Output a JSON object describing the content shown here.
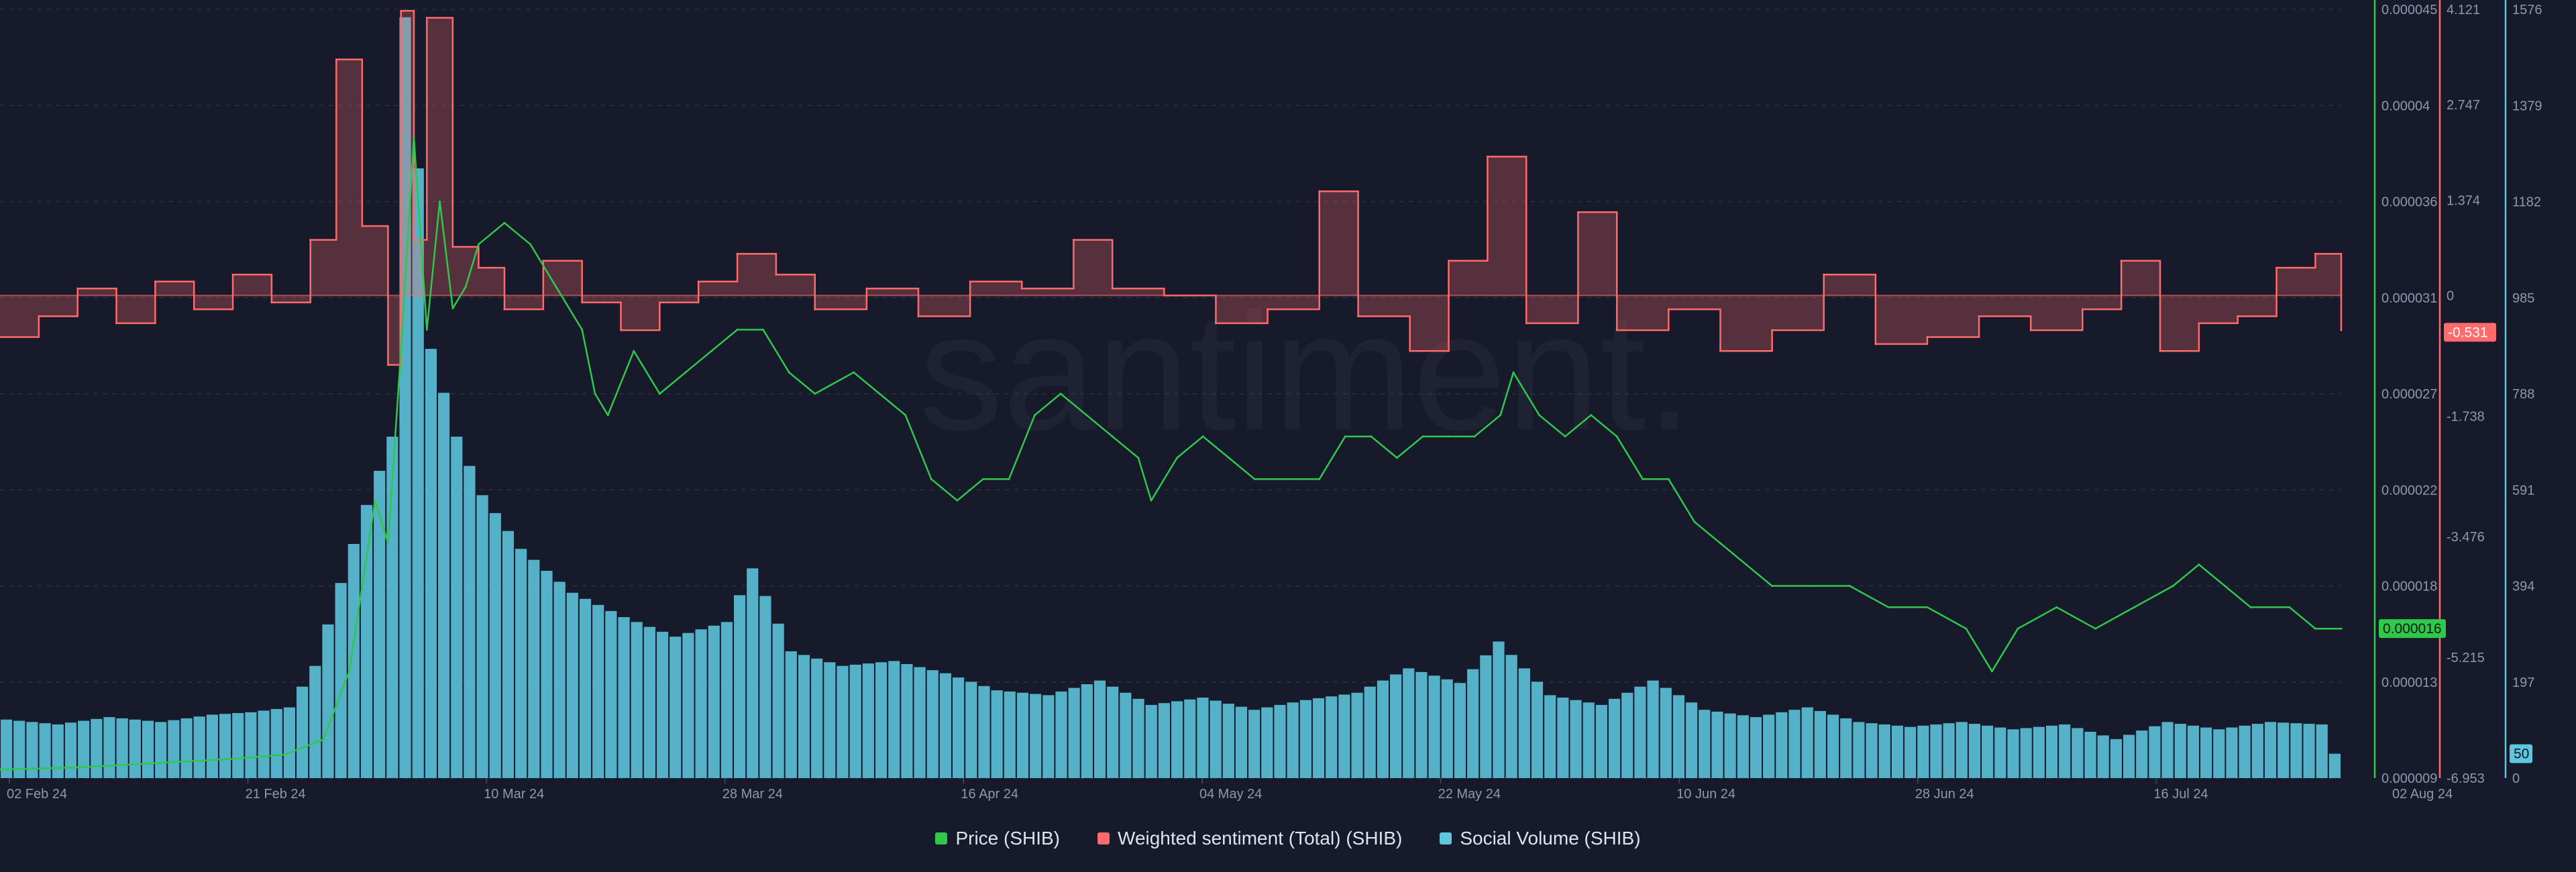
{
  "chart_data": {
    "type": "line",
    "watermark": "santiment.",
    "x_ticks": [
      "02 Feb 24",
      "21 Feb 24",
      "10 Mar 24",
      "28 Mar 24",
      "16 Apr 24",
      "04 May 24",
      "22 May 24",
      "10 Jun 24",
      "28 Jun 24",
      "16 Jul 24",
      "02 Aug 24"
    ],
    "x_range": [
      "2024-02-02",
      "2024-08-01"
    ],
    "axes": {
      "price": {
        "ticks": [
          "0.000045",
          "0.00004",
          "0.000036",
          "0.000031",
          "0.000027",
          "0.000022",
          "0.000018",
          "0.000013",
          "0.000009"
        ],
        "ylim": [
          9e-06,
          4.5e-05
        ],
        "color": "#2fc84a"
      },
      "sentiment": {
        "ticks": [
          "4.121",
          "2.747",
          "1.374",
          "0",
          "-1.738",
          "-3.476",
          "-5.215",
          "-6.953"
        ],
        "ylim": [
          -6.953,
          4.121
        ],
        "color": "#ff6b6b"
      },
      "social": {
        "ticks": [
          "1576",
          "1379",
          "1182",
          "985",
          "788",
          "591",
          "394",
          "197",
          "0"
        ],
        "ylim": [
          0,
          1576
        ],
        "color": "#5ec6dd"
      }
    },
    "current_values": {
      "price": "0.000016",
      "sentiment": "-0.531",
      "social": "50"
    },
    "series": [
      {
        "name": "Price (SHIB)",
        "axis": "price",
        "color": "#2fc84a",
        "points": [
          [
            "2024-02-02",
            9.4e-06
          ],
          [
            "2024-02-08",
            9.5e-06
          ],
          [
            "2024-02-14",
            9.7e-06
          ],
          [
            "2024-02-20",
            9.9e-06
          ],
          [
            "2024-02-24",
            1.01e-05
          ],
          [
            "2024-02-27",
            1.08e-05
          ],
          [
            "2024-02-29",
            1.4e-05
          ],
          [
            "2024-03-01",
            1.8e-05
          ],
          [
            "2024-03-02",
            2.2e-05
          ],
          [
            "2024-03-03",
            2e-05
          ],
          [
            "2024-03-04",
            2.9e-05
          ],
          [
            "2024-03-05",
            3.9e-05
          ],
          [
            "2024-03-06",
            3e-05
          ],
          [
            "2024-03-07",
            3.6e-05
          ],
          [
            "2024-03-08",
            3.1e-05
          ],
          [
            "2024-03-09",
            3.2e-05
          ],
          [
            "2024-03-10",
            3.4e-05
          ],
          [
            "2024-03-12",
            3.5e-05
          ],
          [
            "2024-03-14",
            3.4e-05
          ],
          [
            "2024-03-16",
            3.2e-05
          ],
          [
            "2024-03-18",
            3e-05
          ],
          [
            "2024-03-19",
            2.7e-05
          ],
          [
            "2024-03-20",
            2.6e-05
          ],
          [
            "2024-03-22",
            2.9e-05
          ],
          [
            "2024-03-24",
            2.7e-05
          ],
          [
            "2024-03-26",
            2.8e-05
          ],
          [
            "2024-03-28",
            2.9e-05
          ],
          [
            "2024-03-30",
            3e-05
          ],
          [
            "2024-04-01",
            3e-05
          ],
          [
            "2024-04-03",
            2.8e-05
          ],
          [
            "2024-04-05",
            2.7e-05
          ],
          [
            "2024-04-08",
            2.8e-05
          ],
          [
            "2024-04-10",
            2.7e-05
          ],
          [
            "2024-04-12",
            2.6e-05
          ],
          [
            "2024-04-14",
            2.3e-05
          ],
          [
            "2024-04-16",
            2.2e-05
          ],
          [
            "2024-04-18",
            2.3e-05
          ],
          [
            "2024-04-20",
            2.3e-05
          ],
          [
            "2024-04-22",
            2.6e-05
          ],
          [
            "2024-04-24",
            2.7e-05
          ],
          [
            "2024-04-26",
            2.6e-05
          ],
          [
            "2024-04-28",
            2.5e-05
          ],
          [
            "2024-04-30",
            2.4e-05
          ],
          [
            "2024-05-01",
            2.2e-05
          ],
          [
            "2024-05-03",
            2.4e-05
          ],
          [
            "2024-05-05",
            2.5e-05
          ],
          [
            "2024-05-07",
            2.4e-05
          ],
          [
            "2024-05-09",
            2.3e-05
          ],
          [
            "2024-05-12",
            2.3e-05
          ],
          [
            "2024-05-14",
            2.3e-05
          ],
          [
            "2024-05-16",
            2.5e-05
          ],
          [
            "2024-05-18",
            2.5e-05
          ],
          [
            "2024-05-20",
            2.4e-05
          ],
          [
            "2024-05-22",
            2.5e-05
          ],
          [
            "2024-05-24",
            2.5e-05
          ],
          [
            "2024-05-26",
            2.5e-05
          ],
          [
            "2024-05-28",
            2.6e-05
          ],
          [
            "2024-05-29",
            2.8e-05
          ],
          [
            "2024-05-31",
            2.6e-05
          ],
          [
            "2024-06-02",
            2.5e-05
          ],
          [
            "2024-06-04",
            2.6e-05
          ],
          [
            "2024-06-06",
            2.5e-05
          ],
          [
            "2024-06-08",
            2.3e-05
          ],
          [
            "2024-06-10",
            2.3e-05
          ],
          [
            "2024-06-12",
            2.1e-05
          ],
          [
            "2024-06-14",
            2e-05
          ],
          [
            "2024-06-16",
            1.9e-05
          ],
          [
            "2024-06-18",
            1.8e-05
          ],
          [
            "2024-06-21",
            1.8e-05
          ],
          [
            "2024-06-24",
            1.8e-05
          ],
          [
            "2024-06-27",
            1.7e-05
          ],
          [
            "2024-06-30",
            1.7e-05
          ],
          [
            "2024-07-03",
            1.6e-05
          ],
          [
            "2024-07-05",
            1.4e-05
          ],
          [
            "2024-07-07",
            1.6e-05
          ],
          [
            "2024-07-10",
            1.7e-05
          ],
          [
            "2024-07-13",
            1.6e-05
          ],
          [
            "2024-07-16",
            1.7e-05
          ],
          [
            "2024-07-19",
            1.8e-05
          ],
          [
            "2024-07-21",
            1.9e-05
          ],
          [
            "2024-07-23",
            1.8e-05
          ],
          [
            "2024-07-25",
            1.7e-05
          ],
          [
            "2024-07-28",
            1.7e-05
          ],
          [
            "2024-07-30",
            1.6e-05
          ],
          [
            "2024-08-01",
            1.6e-05
          ]
        ]
      },
      {
        "name": "Weighted sentiment (Total) (SHIB)",
        "axis": "sentiment",
        "color": "#ff6b6b",
        "points": [
          [
            "2024-02-02",
            -0.6
          ],
          [
            "2024-02-05",
            -0.3
          ],
          [
            "2024-02-08",
            0.1
          ],
          [
            "2024-02-11",
            -0.4
          ],
          [
            "2024-02-14",
            0.2
          ],
          [
            "2024-02-17",
            -0.2
          ],
          [
            "2024-02-20",
            0.3
          ],
          [
            "2024-02-23",
            -0.1
          ],
          [
            "2024-02-26",
            0.8
          ],
          [
            "2024-02-28",
            3.4
          ],
          [
            "2024-03-01",
            1.0
          ],
          [
            "2024-03-03",
            -1.0
          ],
          [
            "2024-03-04",
            4.1
          ],
          [
            "2024-03-05",
            0.8
          ],
          [
            "2024-03-06",
            4.0
          ],
          [
            "2024-03-08",
            0.7
          ],
          [
            "2024-03-10",
            0.4
          ],
          [
            "2024-03-12",
            -0.2
          ],
          [
            "2024-03-15",
            0.5
          ],
          [
            "2024-03-18",
            -0.1
          ],
          [
            "2024-03-21",
            -0.5
          ],
          [
            "2024-03-24",
            -0.1
          ],
          [
            "2024-03-27",
            0.2
          ],
          [
            "2024-03-30",
            0.6
          ],
          [
            "2024-04-02",
            0.3
          ],
          [
            "2024-04-05",
            -0.2
          ],
          [
            "2024-04-09",
            0.1
          ],
          [
            "2024-04-13",
            -0.3
          ],
          [
            "2024-04-17",
            0.2
          ],
          [
            "2024-04-21",
            0.1
          ],
          [
            "2024-04-25",
            0.8
          ],
          [
            "2024-04-28",
            0.1
          ],
          [
            "2024-05-02",
            0.0
          ],
          [
            "2024-05-06",
            -0.4
          ],
          [
            "2024-05-10",
            -0.2
          ],
          [
            "2024-05-14",
            1.5
          ],
          [
            "2024-05-17",
            -0.3
          ],
          [
            "2024-05-21",
            -0.8
          ],
          [
            "2024-05-24",
            0.5
          ],
          [
            "2024-05-27",
            2.0
          ],
          [
            "2024-05-30",
            -0.4
          ],
          [
            "2024-06-03",
            1.2
          ],
          [
            "2024-06-06",
            -0.5
          ],
          [
            "2024-06-10",
            -0.2
          ],
          [
            "2024-06-14",
            -0.8
          ],
          [
            "2024-06-18",
            -0.5
          ],
          [
            "2024-06-22",
            0.3
          ],
          [
            "2024-06-26",
            -0.7
          ],
          [
            "2024-06-30",
            -0.6
          ],
          [
            "2024-07-04",
            -0.3
          ],
          [
            "2024-07-08",
            -0.5
          ],
          [
            "2024-07-12",
            -0.2
          ],
          [
            "2024-07-15",
            0.5
          ],
          [
            "2024-07-18",
            -0.8
          ],
          [
            "2024-07-21",
            -0.4
          ],
          [
            "2024-07-24",
            -0.3
          ],
          [
            "2024-07-27",
            0.4
          ],
          [
            "2024-07-30",
            0.6
          ],
          [
            "2024-08-01",
            -0.5
          ]
        ]
      },
      {
        "name": "Social Volume (SHIB)",
        "axis": "social",
        "color": "#5ec6dd",
        "points": [
          [
            "2024-02-02",
            120
          ],
          [
            "2024-02-06",
            110
          ],
          [
            "2024-02-10",
            125
          ],
          [
            "2024-02-14",
            115
          ],
          [
            "2024-02-18",
            130
          ],
          [
            "2024-02-21",
            135
          ],
          [
            "2024-02-24",
            145
          ],
          [
            "2024-02-26",
            230
          ],
          [
            "2024-02-28",
            400
          ],
          [
            "2024-03-01",
            560
          ],
          [
            "2024-03-03",
            700
          ],
          [
            "2024-03-04",
            1560
          ],
          [
            "2024-03-05",
            1250
          ],
          [
            "2024-03-06",
            880
          ],
          [
            "2024-03-08",
            700
          ],
          [
            "2024-03-10",
            580
          ],
          [
            "2024-03-13",
            470
          ],
          [
            "2024-03-17",
            380
          ],
          [
            "2024-03-21",
            330
          ],
          [
            "2024-03-25",
            290
          ],
          [
            "2024-03-29",
            320
          ],
          [
            "2024-03-31",
            430
          ],
          [
            "2024-04-03",
            260
          ],
          [
            "2024-04-07",
            230
          ],
          [
            "2024-04-11",
            240
          ],
          [
            "2024-04-15",
            215
          ],
          [
            "2024-04-19",
            180
          ],
          [
            "2024-04-23",
            170
          ],
          [
            "2024-04-27",
            200
          ],
          [
            "2024-05-01",
            150
          ],
          [
            "2024-05-05",
            165
          ],
          [
            "2024-05-09",
            140
          ],
          [
            "2024-05-13",
            160
          ],
          [
            "2024-05-17",
            175
          ],
          [
            "2024-05-21",
            225
          ],
          [
            "2024-05-25",
            195
          ],
          [
            "2024-05-28",
            280
          ],
          [
            "2024-06-01",
            170
          ],
          [
            "2024-06-05",
            150
          ],
          [
            "2024-06-09",
            200
          ],
          [
            "2024-06-13",
            140
          ],
          [
            "2024-06-17",
            125
          ],
          [
            "2024-06-21",
            145
          ],
          [
            "2024-06-25",
            115
          ],
          [
            "2024-06-29",
            105
          ],
          [
            "2024-07-03",
            115
          ],
          [
            "2024-07-07",
            100
          ],
          [
            "2024-07-11",
            110
          ],
          [
            "2024-07-15",
            80
          ],
          [
            "2024-07-19",
            115
          ],
          [
            "2024-07-23",
            100
          ],
          [
            "2024-07-27",
            115
          ],
          [
            "2024-07-31",
            110
          ],
          [
            "2024-08-01",
            50
          ]
        ]
      }
    ],
    "legend": {
      "placement": "bottom-center",
      "items": [
        {
          "label": "Price (SHIB)",
          "color": "#2fc84a"
        },
        {
          "label": "Weighted sentiment (Total) (SHIB)",
          "color": "#ff6b6b"
        },
        {
          "label": "Social Volume (SHIB)",
          "color": "#5ec6dd"
        }
      ]
    },
    "grid": true
  }
}
